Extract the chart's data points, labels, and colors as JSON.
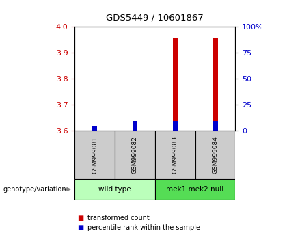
{
  "title": "GDS5449 / 10601867",
  "samples": [
    "GSM999081",
    "GSM999082",
    "GSM999083",
    "GSM999084"
  ],
  "group1_label": "wild type",
  "group2_label": "mek1 mek2 null",
  "red_values": [
    3.607,
    3.627,
    3.957,
    3.957
  ],
  "blue_values": [
    3.617,
    3.637,
    3.637,
    3.637
  ],
  "red_base": 3.6,
  "ylim": [
    3.6,
    4.0
  ],
  "yticks": [
    3.6,
    3.7,
    3.8,
    3.9,
    4.0
  ],
  "right_yticks": [
    0,
    25,
    50,
    75,
    100
  ],
  "right_ytick_labels": [
    "0",
    "25",
    "50",
    "75",
    "100%"
  ],
  "left_color": "#cc0000",
  "right_color": "#0000cc",
  "bar_width": 0.12,
  "group1_color": "#bbffbb",
  "group2_color": "#55dd55",
  "sample_bg": "#cccccc",
  "legend_red": "transformed count",
  "legend_blue": "percentile rank within the sample",
  "genotype_label": "genotype/variation"
}
